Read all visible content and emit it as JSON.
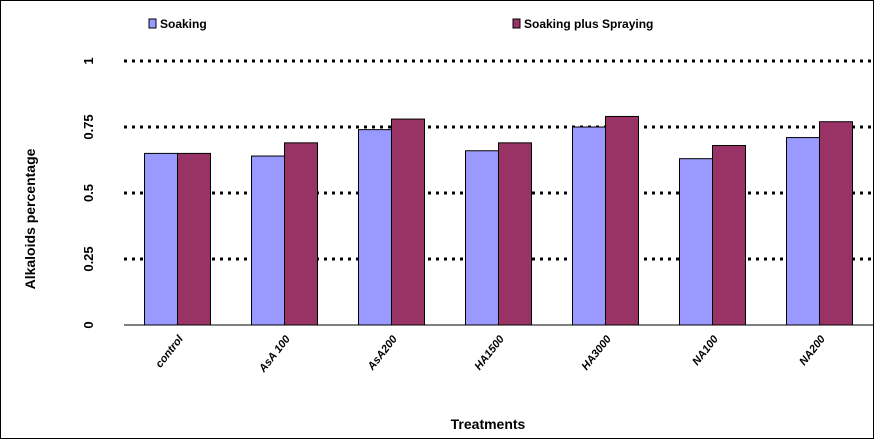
{
  "chart_data": {
    "type": "bar",
    "title": "",
    "xlabel": "Treatments",
    "ylabel": "Alkaloids percentage",
    "categories": [
      "control",
      "AsA 100",
      "AsA200",
      "HA1500",
      "HA3000",
      "NA100",
      "NA200"
    ],
    "series": [
      {
        "name": "Soaking",
        "color": "#9999ff",
        "values": [
          0.65,
          0.64,
          0.74,
          0.66,
          0.75,
          0.63,
          0.71
        ]
      },
      {
        "name": "Soaking plus Spraying",
        "color": "#993366",
        "values": [
          0.65,
          0.69,
          0.78,
          0.69,
          0.79,
          0.68,
          0.77
        ]
      }
    ],
    "ylim": [
      0,
      1
    ],
    "yticks": [
      0,
      0.25,
      0.5,
      0.75,
      1
    ],
    "ytick_labels": [
      "0",
      "0.25",
      "0.5",
      "0.75",
      "1"
    ],
    "grid": "dotted horizontal",
    "legend": "top"
  }
}
